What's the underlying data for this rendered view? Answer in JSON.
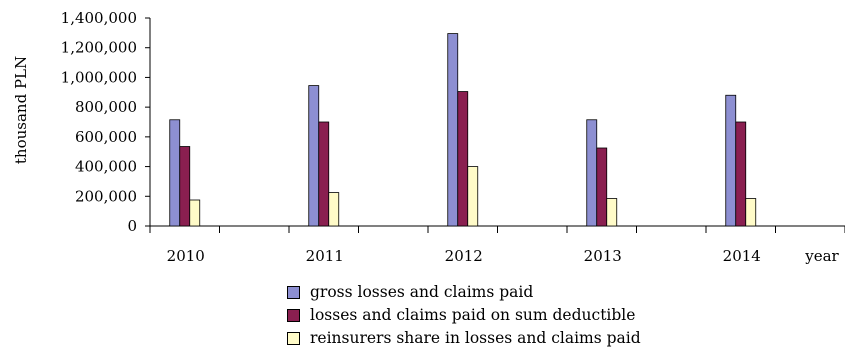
{
  "chart_data": {
    "type": "bar",
    "ylabel": "thousand PLN",
    "xlabel": "year",
    "ylim": [
      0,
      1400000
    ],
    "yticks": [
      0,
      200000,
      400000,
      600000,
      800000,
      1000000,
      1200000,
      1400000
    ],
    "ytick_labels": [
      "0",
      "200,000",
      "400,000",
      "600,000",
      "800,000",
      "1,000,000",
      "1,200,000",
      "1,400,000"
    ],
    "x": [
      2010,
      2011,
      2012,
      2013,
      2014
    ],
    "xlim": [
      2009.75,
      2014.75
    ],
    "categories": [
      "2010",
      "2011",
      "2012",
      "2013",
      "2014"
    ],
    "series": [
      {
        "name": "gross losses and claims paid",
        "color": "#8d8fd2",
        "values": [
          715000,
          945000,
          1295000,
          715000,
          880000
        ]
      },
      {
        "name": "losses and claims paid on sum deductible",
        "color": "#8a1f50",
        "values": [
          535000,
          700000,
          905000,
          525000,
          700000
        ]
      },
      {
        "name": "reinsurers share in losses and claims paid",
        "color": "#fffbc8",
        "values": [
          175000,
          225000,
          400000,
          185000,
          185000
        ]
      }
    ],
    "grid": false,
    "legend_position": "bottom"
  }
}
